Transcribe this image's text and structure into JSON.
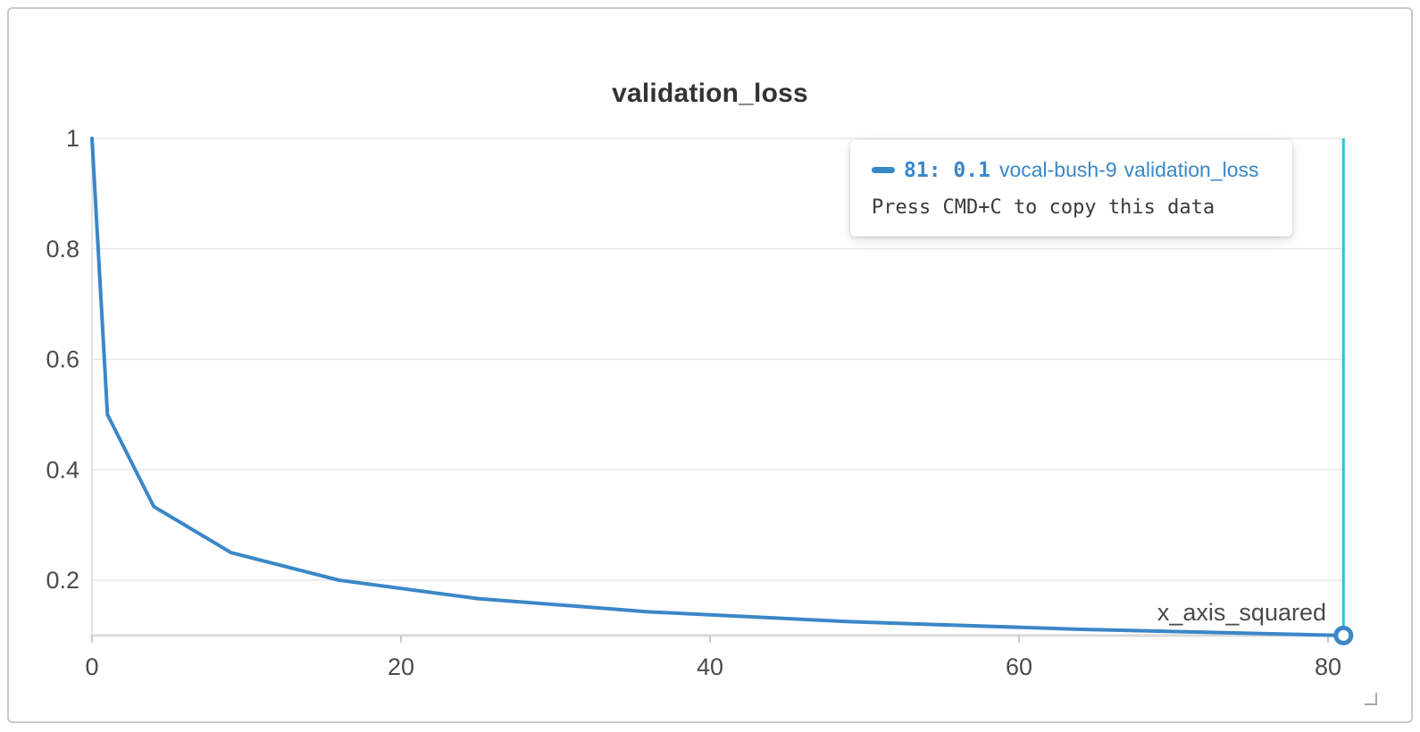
{
  "panel": {
    "title": "validation_loss",
    "x_axis_label": "x_axis_squared"
  },
  "tooltip": {
    "value": "81: 0.1",
    "run_name": "vocal-bush-9",
    "metric": "validation_loss",
    "hint": "Press CMD+C to copy this data"
  },
  "colors": {
    "line": "#3a87c8",
    "crosshair": "#2bc5d8",
    "grid": "#e7e7e7",
    "axis_baseline": "#d9d9d9",
    "axis_side": "#e3e3e3",
    "tick_mark": "#c9c9c9",
    "tick_text": "#4b4b4b"
  },
  "chart_data": {
    "type": "line",
    "title": "validation_loss",
    "xlabel": "x_axis_squared",
    "ylabel": "",
    "series": [
      {
        "name": "vocal-bush-9 validation_loss",
        "x": [
          0,
          1,
          4,
          9,
          16,
          25,
          36,
          49,
          64,
          81
        ],
        "y": [
          1,
          0.5,
          0.3333,
          0.25,
          0.2,
          0.1667,
          0.1429,
          0.125,
          0.1111,
          0.1
        ]
      }
    ],
    "xticks": [
      0,
      20,
      40,
      60,
      80
    ],
    "yticks": [
      0.2,
      0.4,
      0.6,
      0.8,
      1
    ],
    "xtick_labels": [
      "0",
      "20",
      "40",
      "60",
      "80"
    ],
    "ytick_labels": [
      "0.2",
      "0.4",
      "0.6",
      "0.8",
      "1"
    ],
    "xlim": [
      0,
      81
    ],
    "ylim": [
      0.1,
      1
    ],
    "grid": "horizontal",
    "legend_position": "none",
    "highlight": {
      "x": 81,
      "y": 0.1
    }
  }
}
